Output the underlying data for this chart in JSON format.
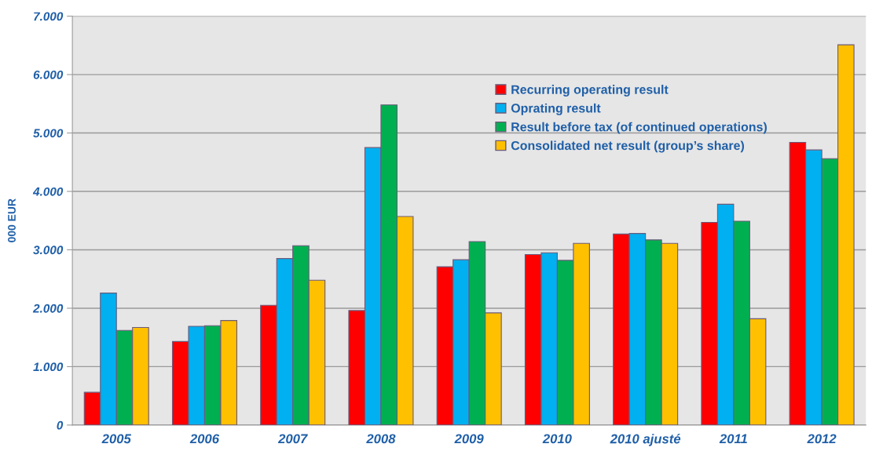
{
  "chart_data": {
    "type": "bar",
    "ylabel": "000 EUR",
    "categories": [
      "2005",
      "2006",
      "2007",
      "2008",
      "2009",
      "2010",
      "2010 ajusté",
      "2011",
      "2012"
    ],
    "series": [
      {
        "name": "Recurring operating result",
        "color": "#ff0000",
        "values": [
          560,
          1430,
          2050,
          1960,
          2710,
          2920,
          3270,
          3470,
          4840
        ]
      },
      {
        "name": "Oprating result",
        "color": "#00b0f0",
        "values": [
          2260,
          1690,
          2850,
          4750,
          2830,
          2950,
          3280,
          3780,
          4710
        ]
      },
      {
        "name": "Result before tax (of continued operations)",
        "color": "#00b050",
        "values": [
          1620,
          1700,
          3070,
          5480,
          3140,
          2820,
          3170,
          3490,
          4560
        ]
      },
      {
        "name": "Consolidated net result (group’s share)",
        "color": "#ffc000",
        "values": [
          1670,
          1790,
          2480,
          3570,
          1920,
          3110,
          3110,
          1820,
          6510
        ]
      }
    ],
    "ylim": [
      0,
      7000
    ],
    "yticks": [
      {
        "value": 0,
        "label": "0"
      },
      {
        "value": 1000,
        "label": "1.000"
      },
      {
        "value": 2000,
        "label": "2.000"
      },
      {
        "value": 3000,
        "label": "3.000"
      },
      {
        "value": 4000,
        "label": "4.000"
      },
      {
        "value": 5000,
        "label": "5.000"
      },
      {
        "value": 6000,
        "label": "6.000"
      },
      {
        "value": 7000,
        "label": "7.000"
      }
    ],
    "grid": "y",
    "legend": "top right"
  }
}
